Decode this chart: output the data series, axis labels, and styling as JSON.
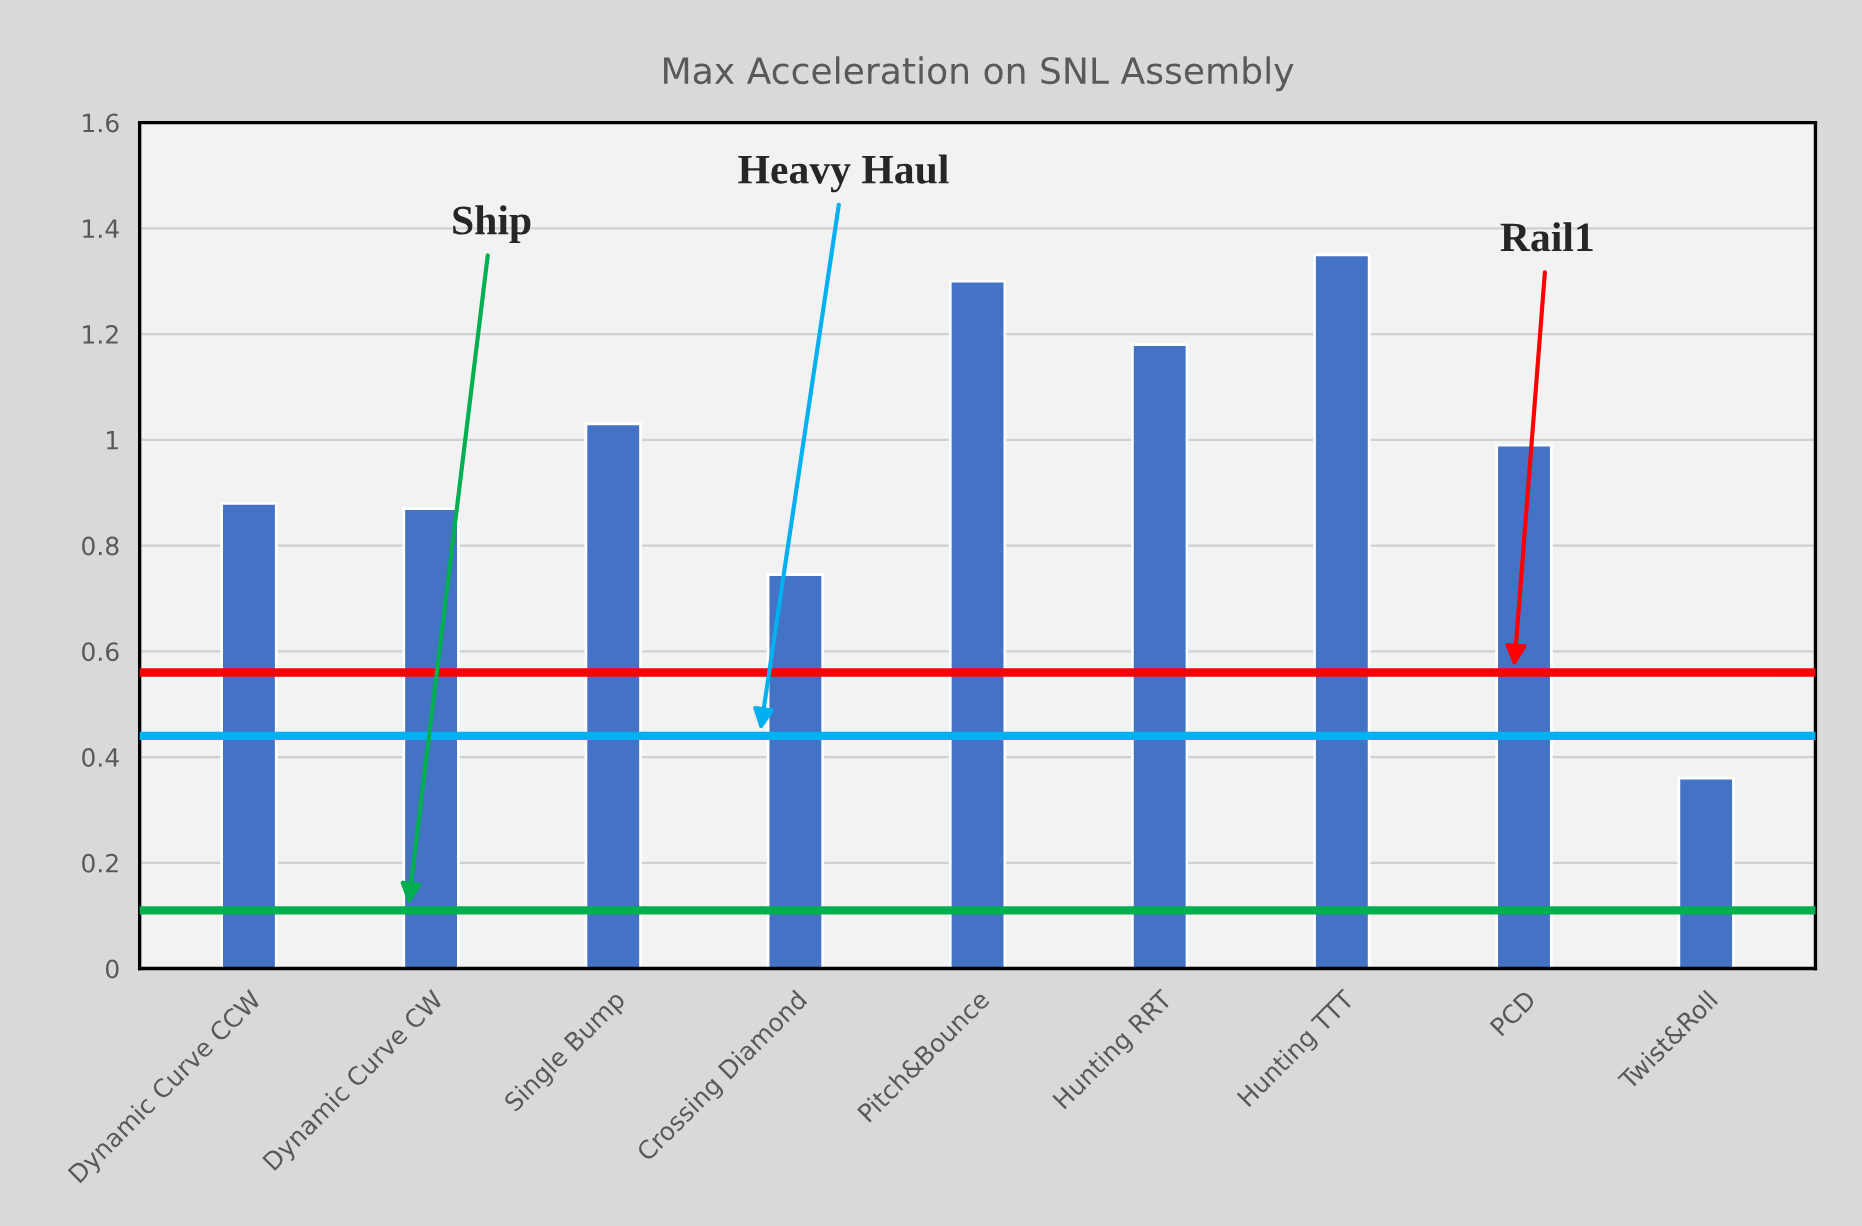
{
  "chart_data": {
    "type": "bar",
    "title": "Max Acceleration on SNL Assembly",
    "categories": [
      "Dynamic Curve CCW",
      "Dynamic Curve CW",
      "Single Bump",
      "Crossing Diamond",
      "Pitch&Bounce",
      "Hunting RRT",
      "Hunting TTT",
      "PCD",
      "Twist&Roll"
    ],
    "values": [
      0.88,
      0.87,
      1.03,
      0.745,
      1.3,
      1.18,
      1.35,
      0.99,
      0.36
    ],
    "color": "#4472c4",
    "ylim": [
      0,
      1.6
    ],
    "yticks": [
      0,
      0.2,
      0.4,
      0.6,
      0.8,
      1,
      1.2,
      1.4,
      1.6
    ],
    "grid": "y",
    "ref_lines": [
      {
        "axis": "y",
        "value": 0.11,
        "label": "Ship",
        "color": "#00b050"
      },
      {
        "axis": "y",
        "value": 0.44,
        "label": "Heavy Haul",
        "color": "#00b0f0"
      },
      {
        "axis": "y",
        "value": 0.56,
        "label": "Rail1",
        "color": "#ff0000"
      }
    ]
  }
}
